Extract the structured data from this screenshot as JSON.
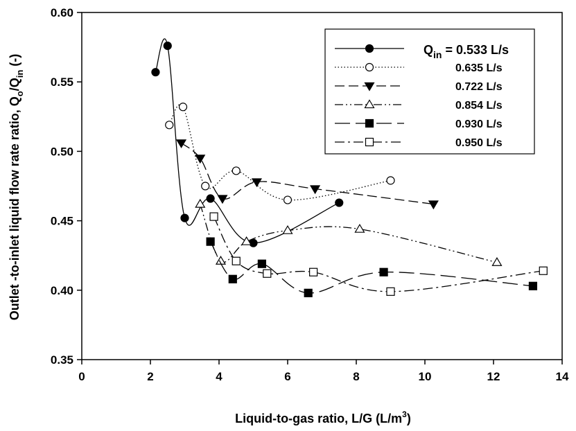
{
  "chart_data": {
    "type": "scatter",
    "title": "",
    "xlabel": "Liquid-to-gas ratio, L/G (L/m³)",
    "ylabel": "Outlet -to-inlet liquid flow rate ratio, Q_o/Q_in (-)",
    "xlim": [
      0,
      14
    ],
    "ylim": [
      0.35,
      0.6
    ],
    "xticks": [
      "0",
      "2",
      "4",
      "6",
      "8",
      "10",
      "12",
      "14"
    ],
    "yticks": [
      "0.35",
      "0.40",
      "0.45",
      "0.50",
      "0.55",
      "0.60"
    ],
    "grid": false,
    "legend_position": "top-right",
    "series": [
      {
        "name": "Qin = 0.533 L/s",
        "marker": "circle-filled",
        "line": "solid",
        "x": [
          2.15,
          2.5,
          3.0,
          3.75,
          5.0,
          7.5
        ],
        "y": [
          0.557,
          0.576,
          0.452,
          0.466,
          0.434,
          0.463
        ]
      },
      {
        "name": "0.635 L/s",
        "marker": "circle-open",
        "line": "dotted",
        "x": [
          2.55,
          2.95,
          3.6,
          4.5,
          6.0,
          9.0
        ],
        "y": [
          0.519,
          0.532,
          0.475,
          0.486,
          0.465,
          0.479
        ]
      },
      {
        "name": "0.722 L/s",
        "marker": "triangle-down-filled",
        "line": "dashed",
        "x": [
          2.9,
          3.45,
          4.1,
          5.1,
          6.8,
          10.25
        ],
        "y": [
          0.506,
          0.495,
          0.466,
          0.478,
          0.473,
          0.462
        ]
      },
      {
        "name": "0.854 L/s",
        "marker": "triangle-up-open",
        "line": "dash-dot-dot",
        "x": [
          3.45,
          4.05,
          4.8,
          6.0,
          8.1,
          12.1
        ],
        "y": [
          0.462,
          0.421,
          0.435,
          0.443,
          0.444,
          0.42
        ]
      },
      {
        "name": "0.930 L/s",
        "marker": "square-filled",
        "line": "long-dash",
        "x": [
          3.75,
          4.4,
          5.25,
          6.6,
          8.8,
          13.15
        ],
        "y": [
          0.435,
          0.408,
          0.419,
          0.398,
          0.413,
          0.403
        ]
      },
      {
        "name": "0.950 L/s",
        "marker": "square-open",
        "line": "dash-dot",
        "x": [
          3.85,
          4.5,
          5.4,
          6.75,
          9.0,
          13.45
        ],
        "y": [
          0.453,
          0.421,
          0.412,
          0.413,
          0.399,
          0.414
        ]
      }
    ],
    "legend": {
      "q_symbol": "Q",
      "q_subscript": "in",
      "first_value": "= 0.533 L/s",
      "labels": [
        "0.635 L/s",
        "0.722 L/s",
        "0.854 L/s",
        "0.930 L/s",
        "0.950 L/s"
      ]
    }
  },
  "axis_text": {
    "xlabel_main": "Liquid-to-gas ratio, L/G (L/m",
    "xlabel_sup": "3",
    "xlabel_end": ")",
    "ylabel_main": "Outlet -to-inlet liquid flow rate ratio, Q",
    "ylabel_sub1": "o",
    "ylabel_mid": "/Q",
    "ylabel_sub2": "in",
    "ylabel_end": " (-)"
  }
}
